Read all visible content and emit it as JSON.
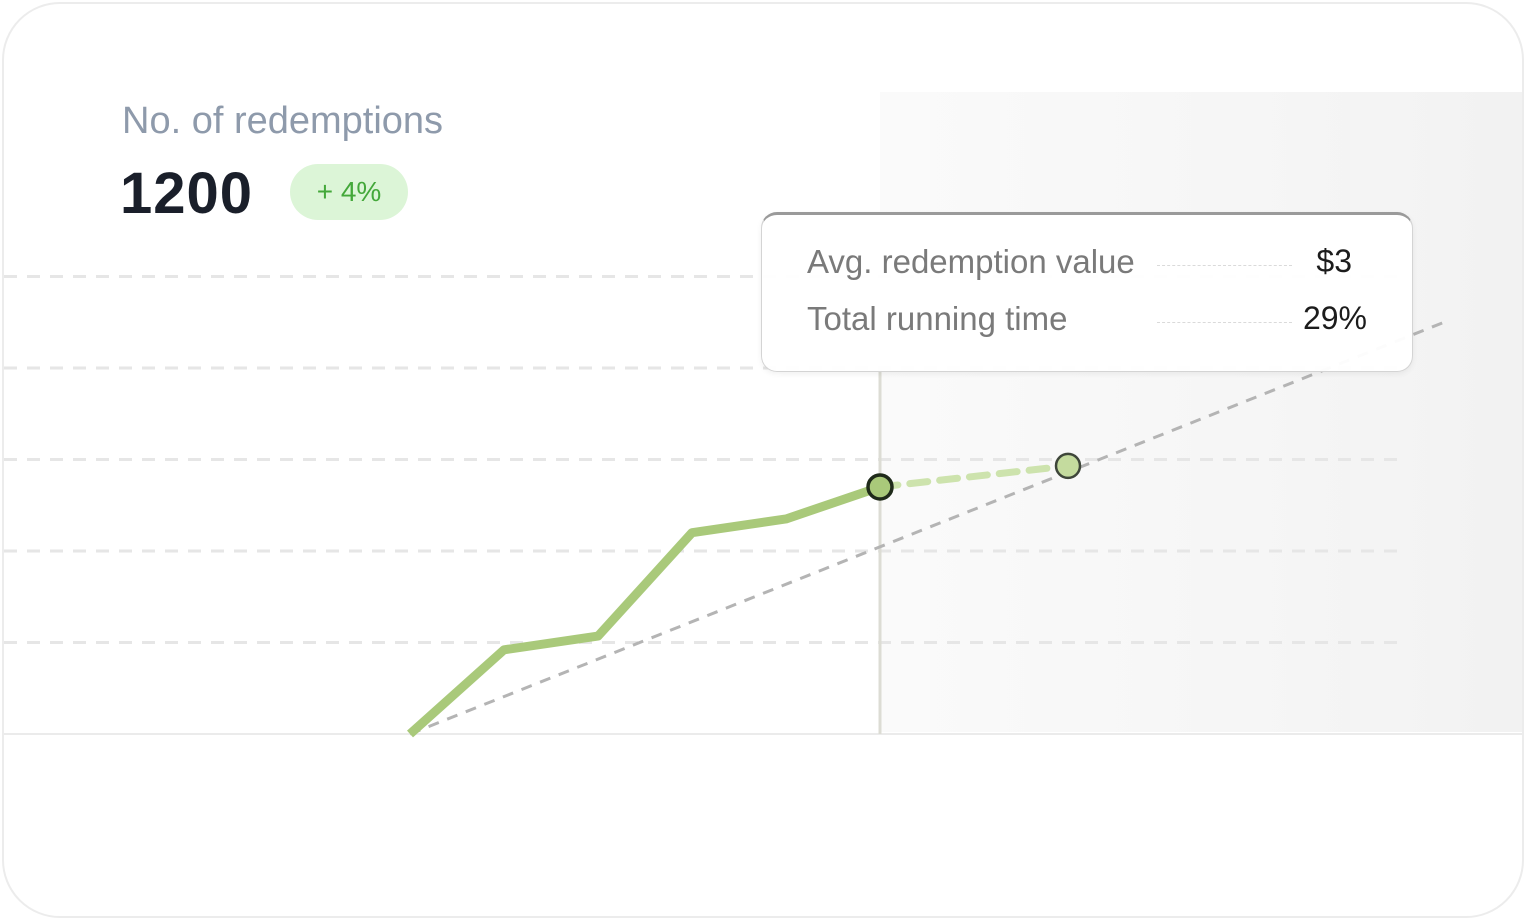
{
  "header": {
    "title": "No. of redemptions",
    "metric": "1200",
    "change_badge": "+ 4%"
  },
  "tooltip": {
    "rows": [
      {
        "label": "Avg. redemption value",
        "value": "$3"
      },
      {
        "label": "Total running time",
        "value": "29%"
      }
    ]
  },
  "colors": {
    "actual_line": "#a9c97a",
    "projection_line": "#cde3ad",
    "trend_line": "#b4b4b4",
    "badge_background": "#dcf5d7",
    "badge_text": "#44a83a",
    "grid": "#e6e6e6"
  },
  "chart_data": {
    "type": "line",
    "ylim": [
      0,
      5
    ],
    "grid": true,
    "series": [
      {
        "kind": "actual",
        "x": [
          0,
          1,
          2,
          3,
          4,
          5
        ],
        "y": [
          0,
          0.92,
          1.07,
          2.2,
          2.35,
          2.7
        ]
      },
      {
        "kind": "projection",
        "x": [
          5,
          7
        ],
        "y": [
          2.7,
          2.93
        ]
      },
      {
        "kind": "trend",
        "x": [
          0,
          11
        ],
        "y": [
          0,
          4.5
        ]
      }
    ],
    "highlight_x": 5
  }
}
